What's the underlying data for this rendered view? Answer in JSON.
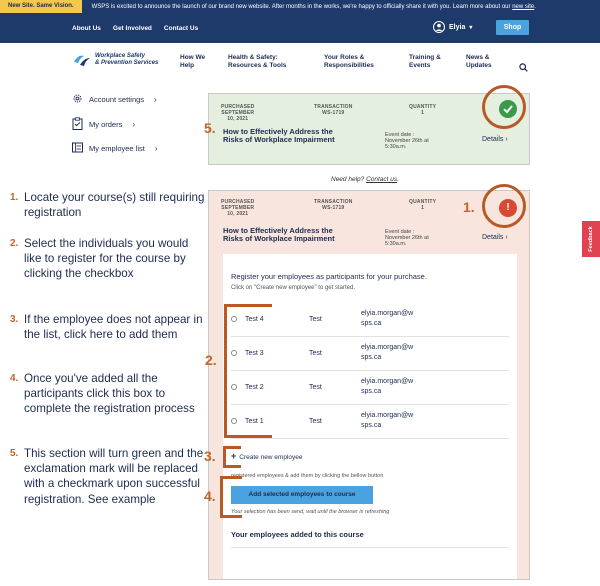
{
  "announcement": {
    "tag": "New Site. Same Vision.",
    "message": "WSPS is excited to announce the launch of our brand new website. After months in the works, we're happy to officially share it with you. Learn more about our",
    "link": "new site",
    "end": "."
  },
  "topnav": {
    "links": [
      "About Us",
      "Get Involved",
      "Contact Us"
    ],
    "user": "Elyia",
    "shop": "Shop"
  },
  "logo": {
    "line1": "Workplace Safety",
    "line2": "& Prevention Services"
  },
  "mainnav": [
    {
      "l1": "How We",
      "l2": "Help"
    },
    {
      "l1": "Health & Safety:",
      "l2": "Resources & Tools"
    },
    {
      "l1": "Your Roles &",
      "l2": "Responsibilities"
    },
    {
      "l1": "Training &",
      "l2": "Events"
    },
    {
      "l1": "News &",
      "l2": "Updates"
    }
  ],
  "account": [
    {
      "label": "Account settings",
      "icon": "gear-icon"
    },
    {
      "label": "My orders",
      "icon": "clipboard-icon"
    },
    {
      "label": "My employee list",
      "icon": "list-icon"
    }
  ],
  "purchase_meta": {
    "purchased_label": "PURCHASED",
    "purchased_date_1": "SEPTEMBER",
    "purchased_date_2": "10, 2021",
    "transaction_label": "TRANSACTION",
    "transaction_id": "WS-1719",
    "quantity_label": "QUANTITY",
    "quantity": "1"
  },
  "course": {
    "title": "How to Effectively Address the Risks of Workplace Impairment",
    "event_date_label": "Event date :",
    "event_date": "November 26th at",
    "event_time": "5:30a.m.",
    "details": "Details"
  },
  "need_help": {
    "text": "Need help?",
    "link": "Contact us",
    "end": "."
  },
  "registration": {
    "title": "Register your employees as participants for your purchase.",
    "subtitle": "Click on \"Create new employee\" to get started.",
    "employees": [
      {
        "first": "Test 4",
        "last": "Test",
        "email_1": "elyia.morgan@w",
        "email_2": "sps.ca"
      },
      {
        "first": "Test 3",
        "last": "Test",
        "email_1": "elyia.morgan@w",
        "email_2": "sps.ca"
      },
      {
        "first": "Test 2",
        "last": "Test",
        "email_1": "elyia.morgan@w",
        "email_2": "sps.ca"
      },
      {
        "first": "Test 1",
        "last": "Test",
        "email_1": "elyia.morgan@w",
        "email_2": "sps.ca"
      }
    ],
    "create": "Create new employee",
    "hint_select": "registered employees & add them by clicking the bellow button",
    "add_button": "Add selected employees to course",
    "hint_wait": "Your selection has been send, wait until the browser is refreshing",
    "added_title": "Your employees added to this course"
  },
  "steps": [
    {
      "num": "1.",
      "text": "Locate your course(s) still requiring registration"
    },
    {
      "num": "2.",
      "text": "Select the individuals you would like to register for the course by clicking the checkbox"
    },
    {
      "num": "3.",
      "text": "If the employee does not appear in the list, click here to add them"
    },
    {
      "num": "4.",
      "text": "Once you've added all the participants click this box to complete the registration process"
    },
    {
      "num": "5.",
      "text": "This section will turn green and the exclamation mark will be replaced with a checkmark upon successful registration. See example"
    }
  ],
  "annotations": [
    "1.",
    "2.",
    "3.",
    "4.",
    "5."
  ],
  "status": {
    "error_glyph": "!"
  },
  "feedback": "Feedback",
  "colors": {
    "navy": "#1d3a6b",
    "accent_orange": "#b85a26",
    "blue_button": "#4aa3df",
    "success_green": "#3a9a4a",
    "error_red": "#d94a33"
  }
}
